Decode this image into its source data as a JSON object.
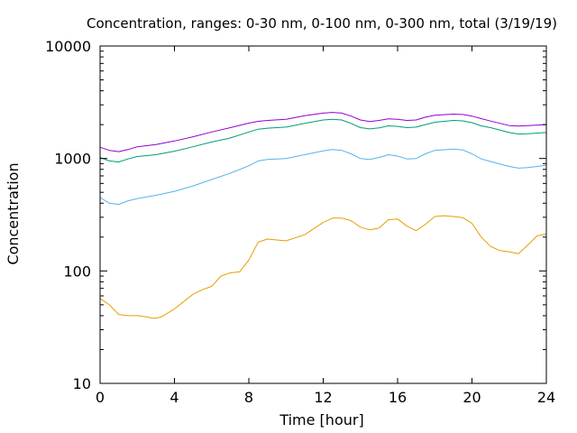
{
  "chart_data": {
    "type": "line",
    "title": "Concentration, ranges: 0-30 nm, 0-100 nm, 0-300 nm, total (3/19/19)",
    "xlabel": "Time [hour]",
    "ylabel": "Concentration",
    "xlim": [
      0,
      24
    ],
    "ylim": [
      10,
      10000
    ],
    "yscale": "log",
    "grid": false,
    "legend": "none",
    "x_ticks": [
      "0",
      "4",
      "8",
      "12",
      "16",
      "20",
      "24"
    ],
    "y_ticks": [
      "10",
      "100",
      "1000",
      "10000"
    ],
    "series": [
      {
        "color": "#E69F00",
        "x": [
          0,
          0.5,
          1,
          1.5,
          2,
          2.5,
          2.8,
          3,
          3.3,
          4,
          5,
          5.5,
          6,
          6.5,
          7,
          7.5,
          8,
          8.5,
          9,
          10,
          11,
          12,
          12.5,
          13,
          13.5,
          14,
          14.5,
          15,
          15.5,
          16,
          16.5,
          17,
          17.5,
          18,
          18.5,
          19,
          19.5,
          20,
          20.5,
          21,
          21.5,
          22,
          22.5,
          23,
          23.5,
          24
        ],
        "y": [
          57,
          50,
          41,
          40,
          40,
          39,
          38,
          38,
          39,
          46,
          62,
          68,
          73,
          90,
          96,
          98,
          125,
          180,
          192,
          185,
          210,
          270,
          295,
          295,
          280,
          245,
          232,
          240,
          285,
          290,
          250,
          228,
          260,
          305,
          310,
          305,
          298,
          265,
          200,
          165,
          152,
          148,
          142,
          170,
          205,
          213
        ]
      },
      {
        "color": "#56B4E9",
        "x": [
          0,
          0.5,
          1,
          1.5,
          2,
          3,
          4,
          5,
          6,
          7,
          8,
          8.5,
          9,
          10,
          11,
          12,
          12.5,
          13,
          13.5,
          14,
          14.5,
          15,
          15.5,
          16,
          16.5,
          17,
          17.5,
          18,
          19,
          19.5,
          20,
          20.5,
          21,
          22,
          22.5,
          23,
          24
        ],
        "y": [
          450,
          400,
          390,
          420,
          440,
          470,
          510,
          570,
          650,
          740,
          860,
          950,
          980,
          1000,
          1080,
          1170,
          1200,
          1180,
          1100,
          1000,
          980,
          1020,
          1080,
          1050,
          990,
          1000,
          1100,
          1180,
          1210,
          1190,
          1100,
          990,
          940,
          850,
          820,
          830,
          870
        ]
      },
      {
        "color": "#009E73",
        "x": [
          0,
          0.5,
          1,
          1.5,
          2,
          3,
          4,
          5,
          6,
          7,
          8,
          8.5,
          9,
          10,
          11,
          12,
          12.5,
          13,
          13.5,
          14,
          14.5,
          15,
          15.5,
          16,
          16.5,
          17,
          17.5,
          18,
          19,
          19.5,
          20,
          20.5,
          21,
          22,
          22.5,
          23,
          24
        ],
        "y": [
          1020,
          950,
          930,
          990,
          1040,
          1080,
          1160,
          1270,
          1400,
          1520,
          1720,
          1820,
          1860,
          1900,
          2050,
          2200,
          2230,
          2200,
          2050,
          1880,
          1830,
          1870,
          1950,
          1930,
          1880,
          1900,
          2000,
          2100,
          2180,
          2160,
          2080,
          1950,
          1880,
          1700,
          1650,
          1660,
          1700
        ]
      },
      {
        "color": "#9400D3",
        "x": [
          0,
          0.5,
          1,
          1.5,
          2,
          3,
          4,
          5,
          6,
          7,
          8,
          8.5,
          9,
          10,
          11,
          12,
          12.5,
          13,
          13.5,
          14,
          14.5,
          15,
          15.5,
          16,
          16.5,
          17,
          17.5,
          18,
          19,
          19.5,
          20,
          20.5,
          21,
          22,
          22.5,
          23,
          24
        ],
        "y": [
          1260,
          1180,
          1150,
          1200,
          1270,
          1330,
          1430,
          1560,
          1720,
          1880,
          2060,
          2140,
          2180,
          2230,
          2400,
          2530,
          2570,
          2530,
          2380,
          2200,
          2130,
          2180,
          2250,
          2230,
          2180,
          2200,
          2330,
          2420,
          2480,
          2460,
          2380,
          2260,
          2150,
          1960,
          1940,
          1960,
          2000
        ]
      }
    ]
  }
}
